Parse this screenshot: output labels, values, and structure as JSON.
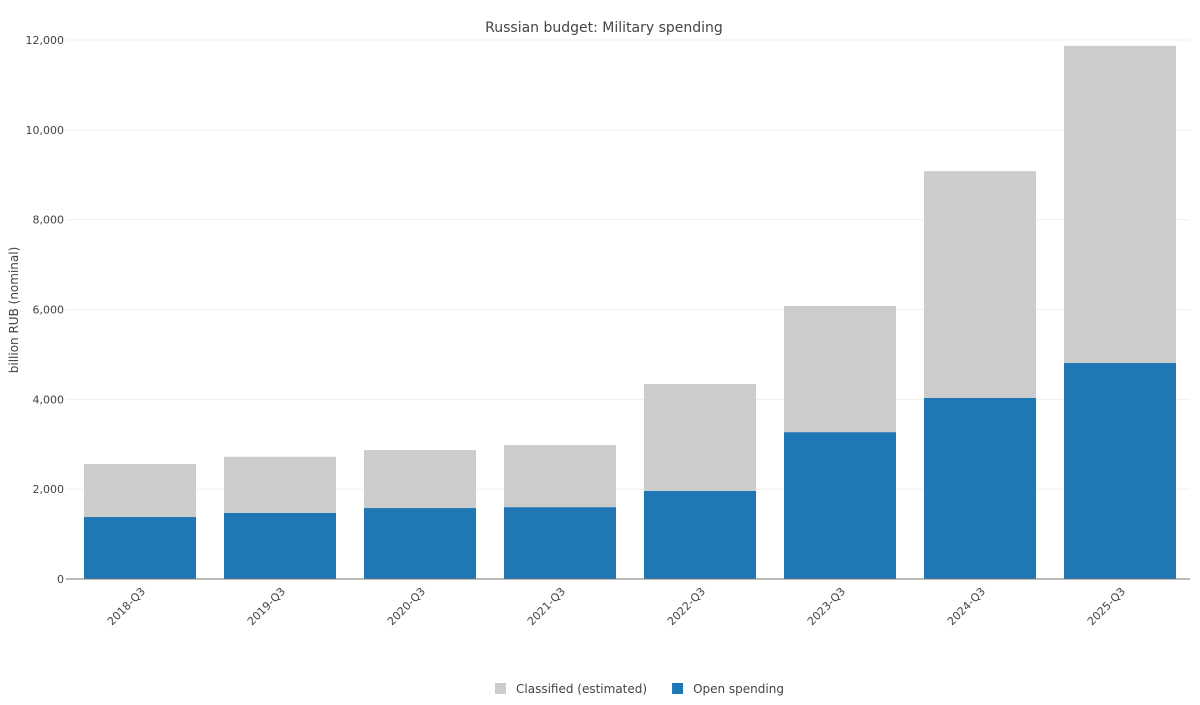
{
  "chart_data": {
    "type": "bar",
    "stacked": true,
    "title": "Russian budget: Military spending",
    "xlabel": "",
    "ylabel": "billion RUB (nominal)",
    "ylim": [
      0,
      12000
    ],
    "yticks": [
      0,
      2000,
      4000,
      6000,
      8000,
      10000,
      12000
    ],
    "ytick_labels": [
      "0",
      "2,000",
      "4,000",
      "6,000",
      "8,000",
      "10,000",
      "12,000"
    ],
    "grid": true,
    "legend_position": "bottom",
    "categories": [
      "2018-Q3",
      "2019-Q3",
      "2020-Q3",
      "2021-Q3",
      "2022-Q3",
      "2023-Q3",
      "2024-Q3",
      "2025-Q3"
    ],
    "series": [
      {
        "name": "Open spending",
        "color": "#1f77b4",
        "values": [
          1380,
          1470,
          1580,
          1600,
          1960,
          3270,
          4030,
          4810
        ]
      },
      {
        "name": "Classified (estimated)",
        "color": "#cccccc",
        "values": [
          1180,
          1250,
          1290,
          1380,
          2380,
          2810,
          5050,
          7060
        ]
      }
    ],
    "legend_order": [
      "Classified (estimated)",
      "Open spending"
    ]
  }
}
